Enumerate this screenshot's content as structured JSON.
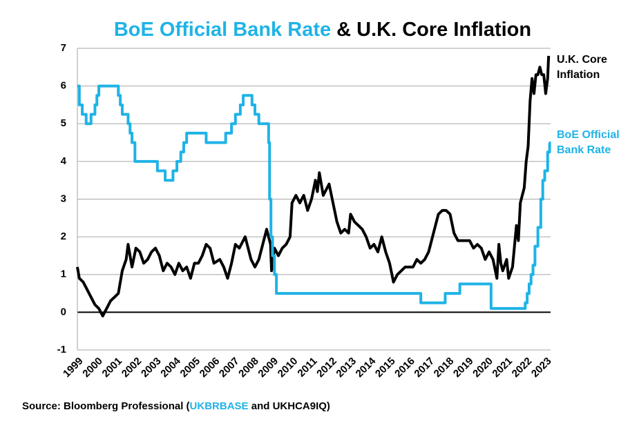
{
  "chart_data": {
    "type": "line",
    "title": [
      "BoE Official Bank Rate",
      "& U.K. Core Inflation"
    ],
    "source": [
      "Source: Bloomberg Professional (",
      "UKBRBASE",
      " and UKHCA9IQ)"
    ],
    "xlim": [
      1999,
      2023.25
    ],
    "xticks": [
      1999,
      2000,
      2001,
      2002,
      2003,
      2004,
      2005,
      2006,
      2007,
      2008,
      2009,
      2010,
      2011,
      2012,
      2013,
      2014,
      2015,
      2016,
      2017,
      2018,
      2019,
      2020,
      2021,
      2022,
      2023
    ],
    "ylim": [
      -1,
      7
    ],
    "yticks": [
      -1,
      0,
      1,
      2,
      3,
      4,
      5,
      6,
      7
    ],
    "grid": true,
    "series": [
      {
        "name": "U.K. Core Inflation",
        "color": "#000000",
        "step": false,
        "x": [
          1999.0,
          1999.1,
          1999.3,
          1999.5,
          1999.7,
          1999.9,
          2000.1,
          2000.3,
          2000.5,
          2000.7,
          2000.9,
          2001.1,
          2001.3,
          2001.5,
          2001.6,
          2001.8,
          2002.0,
          2002.2,
          2002.4,
          2002.6,
          2002.8,
          2003.0,
          2003.2,
          2003.4,
          2003.6,
          2003.8,
          2004.0,
          2004.2,
          2004.4,
          2004.6,
          2004.8,
          2005.0,
          2005.2,
          2005.4,
          2005.6,
          2005.8,
          2006.0,
          2006.3,
          2006.5,
          2006.7,
          2006.9,
          2007.1,
          2007.3,
          2007.5,
          2007.6,
          2007.8,
          2007.9,
          2008.1,
          2008.3,
          2008.5,
          2008.7,
          2008.9,
          2008.95,
          2009.1,
          2009.3,
          2009.5,
          2009.7,
          2009.9,
          2010.0,
          2010.2,
          2010.4,
          2010.6,
          2010.8,
          2011.0,
          2011.2,
          2011.3,
          2011.4,
          2011.6,
          2011.8,
          2011.9,
          2012.1,
          2012.3,
          2012.5,
          2012.7,
          2012.9,
          2013.0,
          2013.2,
          2013.4,
          2013.6,
          2013.8,
          2014.0,
          2014.2,
          2014.4,
          2014.6,
          2014.8,
          2015.0,
          2015.2,
          2015.4,
          2015.6,
          2015.8,
          2016.0,
          2016.2,
          2016.4,
          2016.6,
          2016.8,
          2017.0,
          2017.2,
          2017.4,
          2017.5,
          2017.7,
          2017.9,
          2018.1,
          2018.3,
          2018.5,
          2018.7,
          2018.9,
          2019.1,
          2019.3,
          2019.5,
          2019.7,
          2019.9,
          2020.1,
          2020.3,
          2020.5,
          2020.6,
          2020.7,
          2020.8,
          2021.0,
          2021.1,
          2021.3,
          2021.5,
          2021.6,
          2021.7,
          2021.8,
          2021.9,
          2022.0,
          2022.1,
          2022.2,
          2022.3,
          2022.4,
          2022.5,
          2022.6,
          2022.7,
          2022.8,
          2022.9,
          2023.0,
          2023.1,
          2023.15
        ],
        "values": [
          1.2,
          0.9,
          0.8,
          0.6,
          0.4,
          0.2,
          0.1,
          -0.1,
          0.1,
          0.3,
          0.4,
          0.5,
          1.1,
          1.4,
          1.8,
          1.2,
          1.7,
          1.6,
          1.3,
          1.4,
          1.6,
          1.7,
          1.5,
          1.1,
          1.3,
          1.2,
          1.0,
          1.3,
          1.1,
          1.2,
          0.9,
          1.3,
          1.3,
          1.5,
          1.8,
          1.7,
          1.3,
          1.4,
          1.2,
          0.9,
          1.3,
          1.8,
          1.7,
          1.9,
          2.0,
          1.6,
          1.4,
          1.2,
          1.4,
          1.8,
          2.2,
          1.8,
          1.1,
          1.7,
          1.5,
          1.7,
          1.8,
          2.0,
          2.9,
          3.1,
          2.9,
          3.1,
          2.7,
          3.0,
          3.5,
          3.2,
          3.7,
          3.1,
          3.3,
          3.4,
          2.9,
          2.4,
          2.1,
          2.2,
          2.1,
          2.6,
          2.4,
          2.3,
          2.2,
          2.0,
          1.7,
          1.8,
          1.6,
          2.0,
          1.6,
          1.3,
          0.8,
          1.0,
          1.1,
          1.2,
          1.2,
          1.2,
          1.4,
          1.3,
          1.4,
          1.6,
          2.0,
          2.4,
          2.6,
          2.7,
          2.7,
          2.6,
          2.1,
          1.9,
          1.9,
          1.9,
          1.9,
          1.7,
          1.8,
          1.7,
          1.4,
          1.6,
          1.4,
          0.9,
          1.8,
          1.3,
          1.1,
          1.4,
          0.9,
          1.2,
          2.3,
          1.9,
          2.9,
          3.1,
          3.3,
          4.0,
          4.4,
          5.6,
          6.2,
          5.8,
          6.3,
          6.3,
          6.5,
          6.3,
          6.3,
          5.8,
          6.2,
          6.8
        ]
      },
      {
        "name": "BoE Official Bank Rate",
        "color": "#1fb3e6",
        "step": true,
        "x": [
          1999.0,
          1999.1,
          1999.25,
          1999.45,
          1999.7,
          1999.9,
          2000.0,
          2000.1,
          2001.1,
          2001.2,
          2001.3,
          2001.6,
          2001.7,
          2001.8,
          2001.95,
          2003.1,
          2003.5,
          2003.9,
          2004.1,
          2004.3,
          2004.45,
          2004.6,
          2005.6,
          2006.6,
          2006.9,
          2007.1,
          2007.35,
          2007.5,
          2007.95,
          2008.1,
          2008.3,
          2008.8,
          2008.85,
          2008.92,
          2009.0,
          2009.1,
          2009.2,
          2016.6,
          2017.85,
          2018.6,
          2020.2,
          2021.95,
          2022.05,
          2022.15,
          2022.25,
          2022.35,
          2022.45,
          2022.6,
          2022.75,
          2022.85,
          2022.95,
          2023.1,
          2023.2
        ],
        "values": [
          6.0,
          5.5,
          5.25,
          5.0,
          5.25,
          5.5,
          5.75,
          6.0,
          5.75,
          5.5,
          5.25,
          5.0,
          4.75,
          4.5,
          4.0,
          3.75,
          3.5,
          3.75,
          4.0,
          4.25,
          4.5,
          4.75,
          4.5,
          4.75,
          5.0,
          5.25,
          5.5,
          5.75,
          5.5,
          5.25,
          5.0,
          4.5,
          3.0,
          2.0,
          1.5,
          1.0,
          0.5,
          0.25,
          0.5,
          0.75,
          0.1,
          0.25,
          0.5,
          0.75,
          1.0,
          1.25,
          1.75,
          2.25,
          3.0,
          3.5,
          3.75,
          4.25,
          4.5
        ]
      }
    ]
  }
}
